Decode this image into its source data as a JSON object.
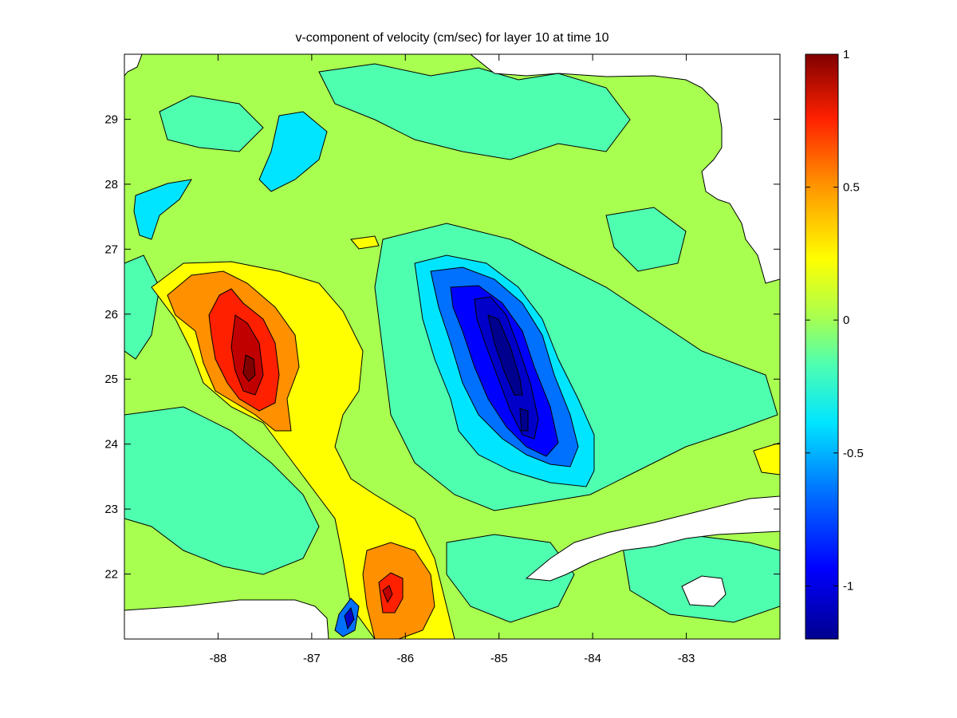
{
  "chart_data": {
    "type": "contour",
    "title": "v-component of velocity (cm/sec) for layer 10 at time 10",
    "xlabel": "",
    "ylabel": "",
    "xlim": [
      -89.0,
      -82.0
    ],
    "ylim": [
      21.0,
      30.0
    ],
    "x_ticks": [
      -88,
      -87,
      -86,
      -85,
      -84,
      -83
    ],
    "y_ticks": [
      22,
      23,
      24,
      25,
      26,
      27,
      28,
      29
    ],
    "colorbar": {
      "range": [
        -1.2,
        1.0
      ],
      "ticks": [
        -1,
        -0.5,
        0,
        0.5,
        1
      ],
      "tick_labels": [
        "-1",
        "-0.5",
        "0",
        "0.5",
        "1"
      ],
      "colormap": "jet"
    },
    "features": [
      {
        "label": "positive maximum",
        "x": -87.6,
        "y": 25.2,
        "value": 0.9
      },
      {
        "label": "positive maximum",
        "x": -86.1,
        "y": 21.8,
        "value": 0.75
      },
      {
        "label": "negative minimum",
        "x": -84.8,
        "y": 25.3,
        "value": -1.2
      },
      {
        "label": "negative minimum",
        "x": -86.5,
        "y": 21.3,
        "value": -0.7
      }
    ],
    "land": "white (masked)",
    "grid": false
  }
}
